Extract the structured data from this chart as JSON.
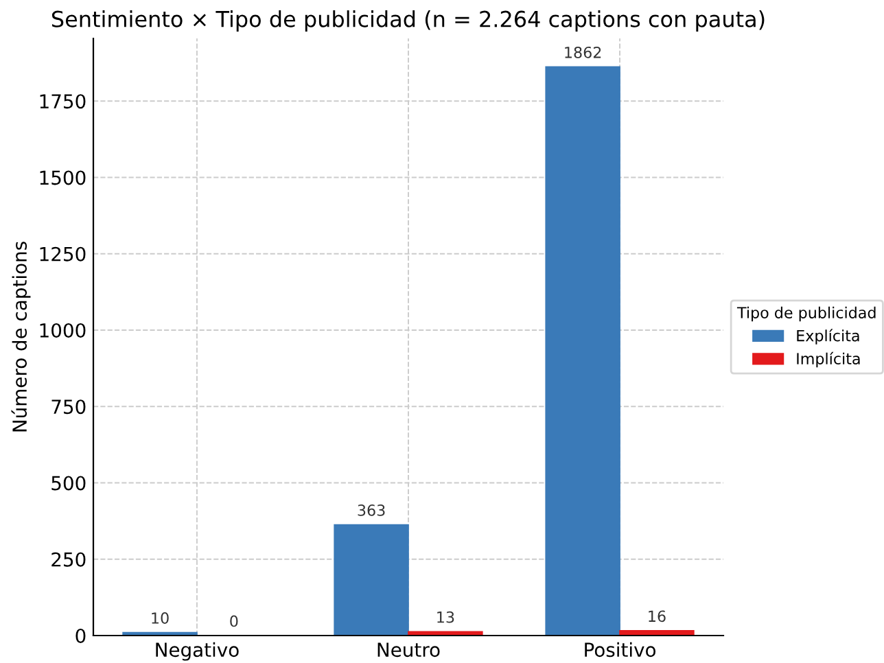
{
  "chart_data": {
    "type": "bar",
    "title": "Sentimiento × Tipo de publicidad (n = 2.264 captions con pauta)",
    "ylabel": "Número de captions",
    "categories": [
      "Negativo",
      "Neutro",
      "Positivo"
    ],
    "series": [
      {
        "name": "Explícita",
        "color": "#3a7ab8",
        "values": [
          10,
          363,
          1862
        ]
      },
      {
        "name": "Implícita",
        "color": "#e31a1c",
        "values": [
          0,
          13,
          16
        ]
      }
    ],
    "legend_title": "Tipo de publicidad",
    "legend": "right",
    "grid": true,
    "data_labels": true,
    "ylim": [
      0,
      1955
    ],
    "yticks": [
      0,
      250,
      500,
      750,
      1000,
      1250,
      1500,
      1750
    ]
  }
}
